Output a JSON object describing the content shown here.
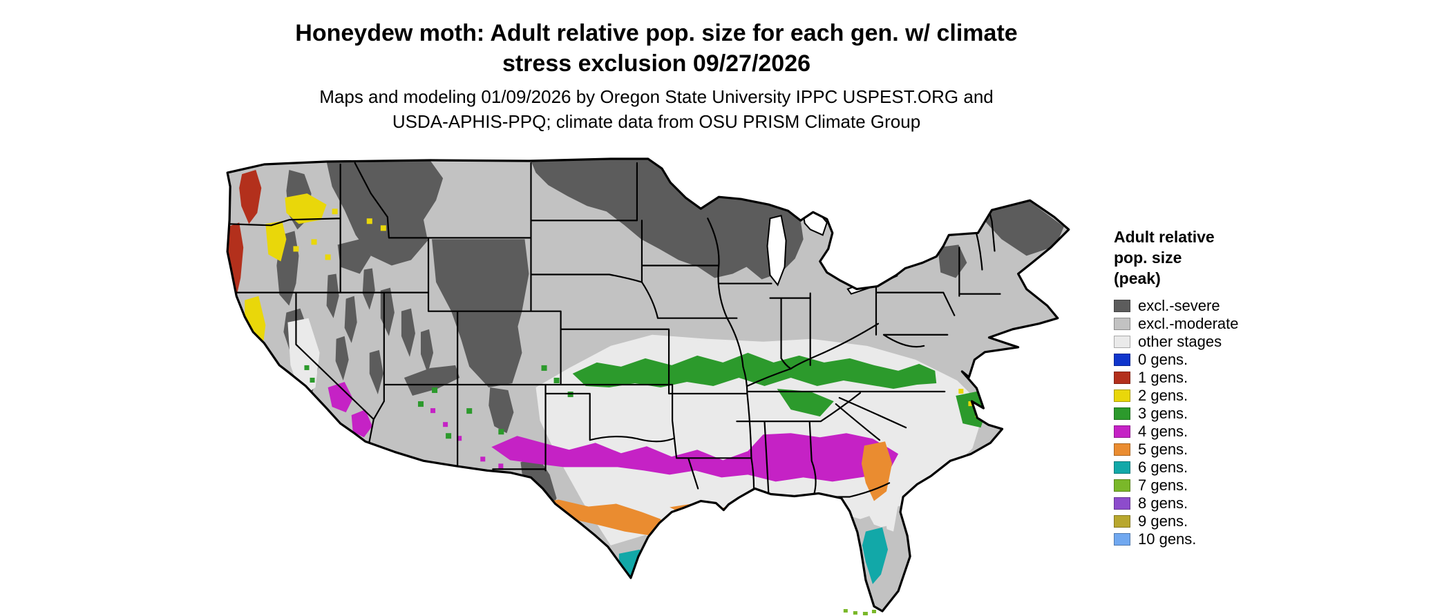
{
  "title": {
    "line1": "Honeydew moth: Adult relative pop. size for each gen. w/ climate",
    "line2": "stress exclusion 09/27/2026"
  },
  "subtitle": {
    "line1": "Maps and modeling 01/09/2026 by Oregon State University IPPC USPEST.ORG and",
    "line2": "USDA-APHIS-PPQ; climate data from OSU PRISM Climate Group"
  },
  "legend": {
    "title_lines": [
      "Adult relative",
      "pop. size",
      "(peak)"
    ],
    "items": [
      {
        "label": "excl.-severe",
        "color": "#5c5c5c"
      },
      {
        "label": "excl.-moderate",
        "color": "#c2c2c2"
      },
      {
        "label": "other stages",
        "color": "#eaeaea"
      },
      {
        "label": "0 gens.",
        "color": "#0f35cc"
      },
      {
        "label": "1 gens.",
        "color": "#b3301c"
      },
      {
        "label": "2 gens.",
        "color": "#e9d70a"
      },
      {
        "label": "3 gens.",
        "color": "#2c9a2c"
      },
      {
        "label": "4 gens.",
        "color": "#c522c5"
      },
      {
        "label": "5 gens.",
        "color": "#ea8c30"
      },
      {
        "label": "6 gens.",
        "color": "#12a8a8"
      },
      {
        "label": "7 gens.",
        "color": "#7ab829"
      },
      {
        "label": "8 gens.",
        "color": "#8d4ccc"
      },
      {
        "label": "9 gens.",
        "color": "#b8a72e"
      },
      {
        "label": "10 gens.",
        "color": "#70a8f0"
      }
    ]
  },
  "map": {
    "region": "Contiguous United States",
    "kind": "raster risk map with state boundaries",
    "visible_map_classes": [
      "excl.-severe",
      "excl.-moderate",
      "other stages",
      "1 gens.",
      "2 gens.",
      "3 gens.",
      "4 gens.",
      "5 gens.",
      "6 gens.",
      "7 gens."
    ]
  }
}
